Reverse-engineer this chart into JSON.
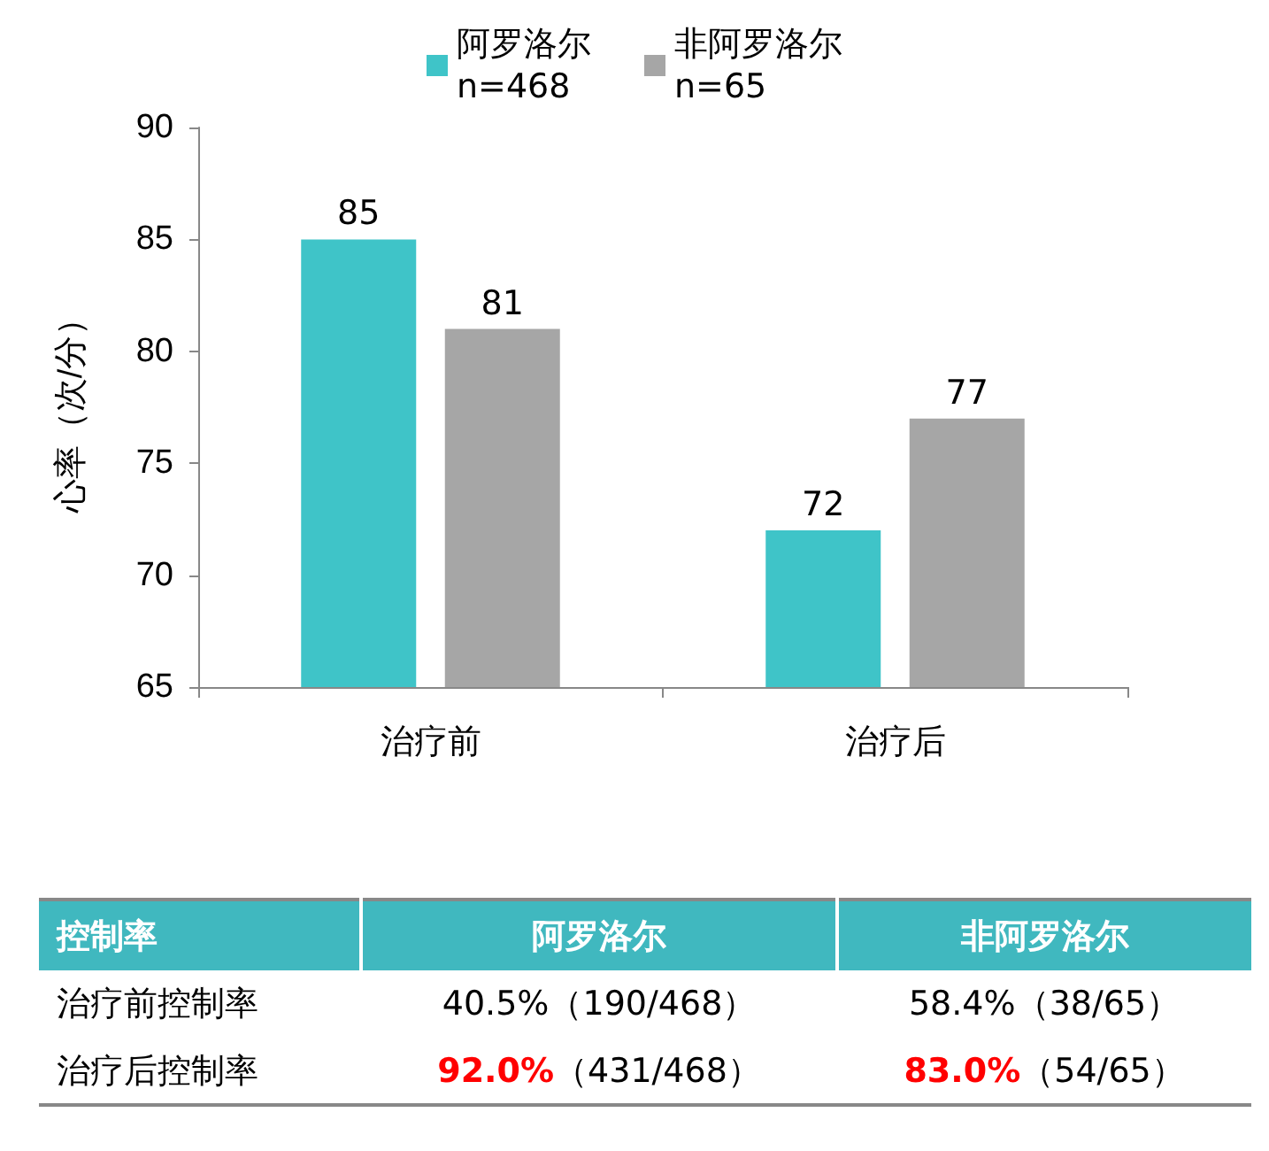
{
  "chart_data": [
    {
      "type": "bar",
      "ylabel": "心率（次/分）",
      "categories": [
        "治疗前",
        "治疗后"
      ],
      "series": [
        {
          "name": "阿罗洛尔\nn=468",
          "color": "#3fc4c8",
          "values": [
            85,
            72
          ]
        },
        {
          "name": "非阿罗洛尔\nn=65",
          "color": "#a6a6a6",
          "values": [
            81,
            77
          ]
        }
      ],
      "ylim": [
        65,
        90
      ],
      "yticks": [
        65,
        70,
        75,
        80,
        85,
        90
      ],
      "grid": false,
      "legend": "top",
      "data_labels": true
    },
    {
      "type": "other",
      "categories": [
        "控制率",
        "阿罗洛尔",
        "非阿罗洛尔"
      ],
      "y_categories": [
        "治疗前控制率",
        "治疗后控制率"
      ],
      "cell_labels": [
        [
          "40.5%（190/468）",
          "58.4%（38/65）"
        ],
        [
          "92.0%（431/468）",
          "83.0%（54/65）"
        ]
      ],
      "colors": [
        [
          null,
          null
        ],
        [
          "#ff0000",
          "#ff0000"
        ]
      ]
    }
  ]
}
